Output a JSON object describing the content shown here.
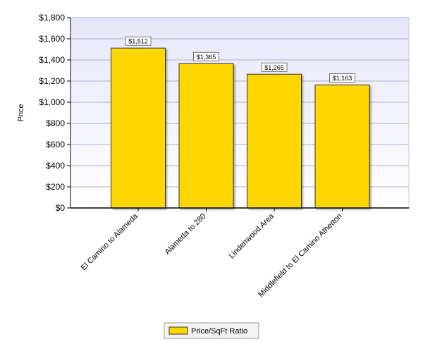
{
  "chart_data": {
    "type": "bar",
    "title": "",
    "xlabel": "",
    "ylabel": "Price",
    "categories": [
      "El Camino to Alameda",
      "Alameda to 280",
      "Lindenwood Area",
      "Middlefield to El Camino Atherton"
    ],
    "series": [
      {
        "name": "Price/SqFt Ratio",
        "values": [
          1512,
          1365,
          1265,
          1163
        ],
        "color": "#FFD700"
      }
    ],
    "data_labels": [
      "$1,512",
      "$1,365",
      "$1,265",
      "$1,163"
    ],
    "ylim": [
      0,
      1800
    ],
    "yticks": [
      0,
      200,
      400,
      600,
      800,
      1000,
      1200,
      1400,
      1600,
      1800
    ],
    "ytick_labels": [
      "$0",
      "$200",
      "$400",
      "$600",
      "$800",
      "$1,000",
      "$1,200",
      "$1,400",
      "$1,600",
      "$1,800"
    ],
    "grid": true,
    "legend": {
      "placement": "bottom-center",
      "entries": [
        "Price/SqFt Ratio"
      ]
    },
    "colors": {
      "bar": "#FFD700",
      "bar_stroke": "#333333",
      "plot_bg_top": "#E6E6FA",
      "plot_bg_bottom": "#FFFFFF",
      "grid": "#B0B0C8"
    }
  }
}
